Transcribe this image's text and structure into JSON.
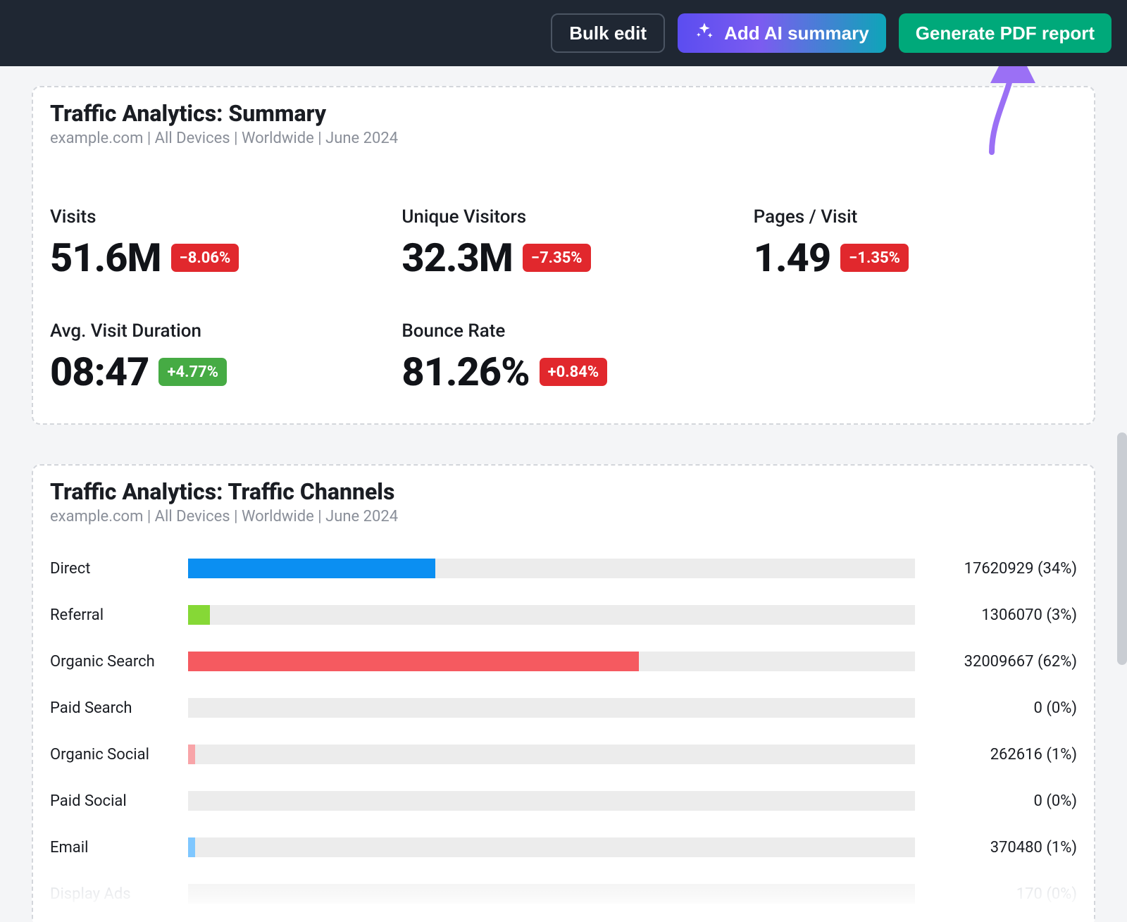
{
  "topbar": {
    "bulk_edit_label": "Bulk edit",
    "add_ai_summary_label": "Add AI summary",
    "generate_pdf_label": "Generate PDF report"
  },
  "summary_card": {
    "title": "Traffic Analytics: Summary",
    "subtitle": "example.com | All Devices | Worldwide | June 2024",
    "metrics": [
      {
        "label": "Visits",
        "value": "51.6M",
        "delta": "−8.06%",
        "delta_color": "red"
      },
      {
        "label": "Unique Visitors",
        "value": "32.3M",
        "delta": "−7.35%",
        "delta_color": "red"
      },
      {
        "label": "Pages / Visit",
        "value": "1.49",
        "delta": "−1.35%",
        "delta_color": "red"
      },
      {
        "label": "Avg. Visit Duration",
        "value": "08:47",
        "delta": "+4.77%",
        "delta_color": "green"
      },
      {
        "label": "Bounce Rate",
        "value": "81.26%",
        "delta": "+0.84%",
        "delta_color": "red"
      }
    ],
    "badge_colors": {
      "red": "#e1282d",
      "green": "#46ab44"
    }
  },
  "channels_card": {
    "title": "Traffic Analytics: Traffic Channels",
    "subtitle": "example.com | All Devices | Worldwide | June 2024",
    "bar_track_color": "#ececec",
    "channels": [
      {
        "label": "Direct",
        "value": "17620929 (34%)",
        "pct": 34,
        "color": "#0b8ff2"
      },
      {
        "label": "Referral",
        "value": "1306070 (3%)",
        "pct": 3,
        "color": "#86d836"
      },
      {
        "label": "Organic Search",
        "value": "32009667 (62%)",
        "pct": 62,
        "color": "#f55a60"
      },
      {
        "label": "Paid Search",
        "value": "0 (0%)",
        "pct": 0,
        "color": "#f7b955"
      },
      {
        "label": "Organic Social",
        "value": "262616 (1%)",
        "pct": 1,
        "color": "#f8a4a8"
      },
      {
        "label": "Paid Social",
        "value": "0 (0%)",
        "pct": 0,
        "color": "#c29df5"
      },
      {
        "label": "Email",
        "value": "370480 (1%)",
        "pct": 1,
        "color": "#7fc7ff"
      },
      {
        "label": "Display Ads",
        "value": "170 (0%)",
        "pct": 0,
        "color": "#c9cdd3",
        "faded": true
      }
    ]
  },
  "annotation": {
    "arrow_color": "#9b70f5"
  }
}
